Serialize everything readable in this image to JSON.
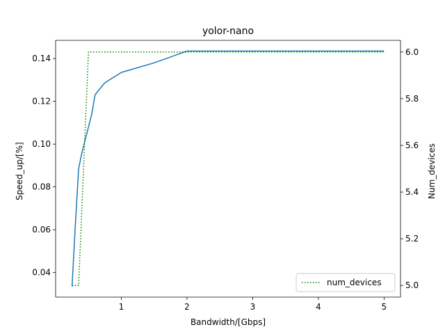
{
  "chart_data": {
    "type": "line",
    "title": "yolor-nano",
    "xlabel": "Bandwidth/[Gbps]",
    "ylabel": "Speed_up/[%]",
    "y2label": "Num_devices",
    "xlim": [
      0.0,
      5.25
    ],
    "ylim": [
      0.0285,
      0.1485
    ],
    "y2lim": [
      4.95,
      6.05
    ],
    "xticks": [
      1,
      2,
      3,
      4,
      5
    ],
    "yticks": [
      0.04,
      0.06,
      0.08,
      0.1,
      0.12,
      0.14
    ],
    "y2ticks": [
      5.0,
      5.2,
      5.4,
      5.6,
      5.8,
      6.0
    ],
    "ytick_labels": [
      "0.04",
      "0.06",
      "0.08",
      "0.10",
      "0.12",
      "0.14"
    ],
    "y2tick_labels": [
      "5.0",
      "5.2",
      "5.4",
      "5.6",
      "5.8",
      "6.0"
    ],
    "legend_position": "lower-right",
    "grid": false,
    "series": [
      {
        "axis": "left",
        "color": "#1f77b4",
        "style": "solid",
        "x": [
          0.25,
          0.3,
          0.35,
          0.4,
          0.45,
          0.5,
          0.55,
          0.6,
          0.65,
          0.75,
          1.0,
          1.5,
          2.0,
          3.0,
          4.0,
          5.0
        ],
        "y": [
          0.0335,
          0.062,
          0.0885,
          0.096,
          0.102,
          0.108,
          0.114,
          0.123,
          0.125,
          0.1287,
          0.1335,
          0.138,
          0.1435,
          0.1435,
          0.1435,
          0.1435
        ]
      },
      {
        "name": "num_devices",
        "axis": "right",
        "color": "#008000",
        "style": "dotted",
        "x": [
          0.25,
          0.35,
          0.5,
          1.0,
          2.0,
          3.0,
          4.0,
          5.0
        ],
        "y": [
          5.0,
          5.0,
          6.0,
          6.0,
          6.0,
          6.0,
          6.0,
          6.0
        ]
      }
    ]
  }
}
